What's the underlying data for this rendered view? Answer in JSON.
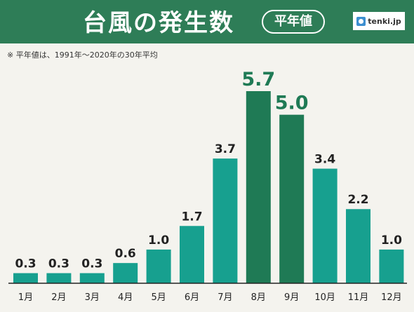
{
  "header": {
    "title": "台風の発生数",
    "badge": "平年値",
    "logo_text": "tenki.jp",
    "logo_icon": "tenki-logo-icon"
  },
  "note": "※ 平年値は、1991年～2020年の30年平均",
  "colors": {
    "header_bg": "#2e7d57",
    "bar": "#17a08f",
    "bar_highlight": "#1f7a55",
    "value_highlight": "#1f7a55",
    "value_text": "#222222",
    "axis": "#222222"
  },
  "chart_data": {
    "type": "bar",
    "categories": [
      "1月",
      "2月",
      "3月",
      "4月",
      "5月",
      "6月",
      "7月",
      "8月",
      "9月",
      "10月",
      "11月",
      "12月"
    ],
    "values": [
      0.3,
      0.3,
      0.3,
      0.6,
      1.0,
      1.7,
      3.7,
      5.7,
      5.0,
      3.4,
      2.2,
      1.0
    ],
    "value_labels": [
      "0.3",
      "0.3",
      "0.3",
      "0.6",
      "1.0",
      "1.7",
      "3.7",
      "5.7",
      "5.0",
      "3.4",
      "2.2",
      "1.0"
    ],
    "highlighted": [
      false,
      false,
      false,
      false,
      false,
      false,
      false,
      true,
      true,
      false,
      false,
      false
    ],
    "title": "台風の発生数",
    "xlabel": "",
    "ylabel": "",
    "ylim": [
      0,
      5.7
    ],
    "grid": false,
    "legend": "none"
  }
}
